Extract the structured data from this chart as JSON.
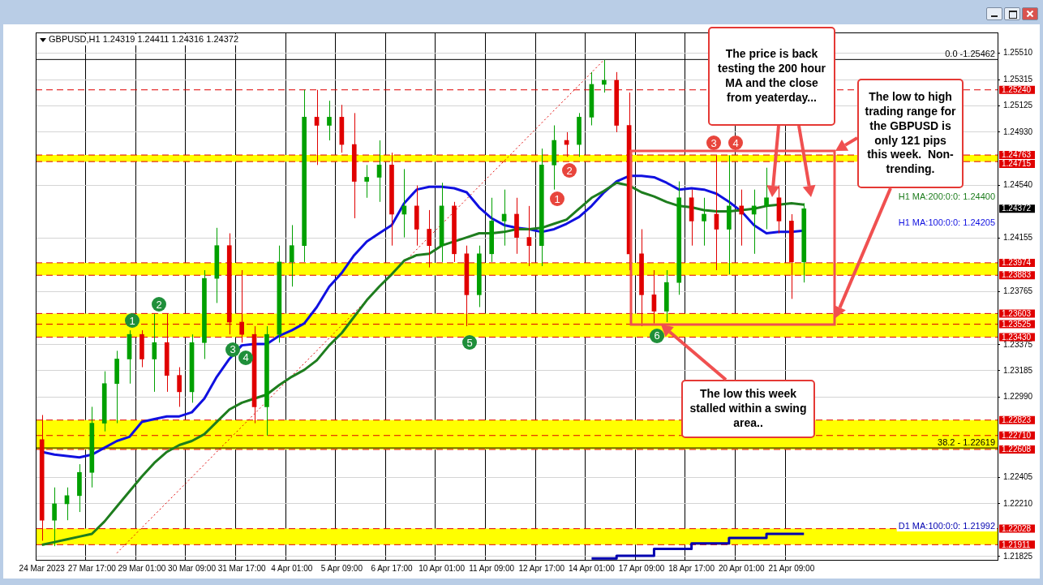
{
  "chart_data": {
    "type": "candlestick",
    "title": "GBPUSD,H1 1.24319 1.24411 1.24316 1.24372",
    "categories": [
      "24 Mar 2023",
      null,
      null,
      null,
      "27 Mar 17:00",
      null,
      null,
      null,
      "29 Mar 01:00",
      null,
      null,
      null,
      "30 Mar 09:00",
      null,
      null,
      null,
      "31 Mar 17:00",
      null,
      null,
      null,
      "4 Apr 01:00",
      null,
      null,
      null,
      "5 Apr 09:00",
      null,
      null,
      null,
      "6 Apr 17:00",
      null,
      null,
      null,
      "10 Apr 01:00",
      null,
      null,
      null,
      "11 Apr 09:00",
      null,
      null,
      null,
      "12 Apr 17:00",
      null,
      null,
      null,
      "14 Apr 01:00",
      null,
      null,
      null,
      "17 Apr 09:00",
      null,
      null,
      null,
      "18 Apr 17:00",
      null,
      null,
      null,
      "20 Apr 01:00",
      null,
      null,
      null,
      "21 Apr 09:00",
      null,
      null,
      null,
      null,
      null,
      null,
      null,
      null,
      null,
      null,
      null,
      null,
      null,
      null,
      null,
      null
    ],
    "ohlc": [
      [
        1.2268,
        1.2286,
        1.2194,
        1.2209
      ],
      [
        1.2209,
        1.2233,
        1.219,
        1.2221
      ],
      [
        1.2221,
        1.2233,
        1.2209,
        1.2227
      ],
      [
        1.2227,
        1.225,
        1.2215,
        1.2244
      ],
      [
        1.2244,
        1.2292,
        1.2233,
        1.228
      ],
      [
        1.228,
        1.2318,
        1.2274,
        1.2309
      ],
      [
        1.2309,
        1.2333,
        1.228,
        1.2327
      ],
      [
        1.2327,
        1.2348,
        1.2309,
        1.2345
      ],
      [
        1.2345,
        1.2348,
        1.2321,
        1.2327
      ],
      [
        1.2327,
        1.236,
        1.2303,
        1.2339
      ],
      [
        1.2339,
        1.236,
        1.2303,
        1.2315
      ],
      [
        1.2315,
        1.2321,
        1.2292,
        1.2303
      ],
      [
        1.2303,
        1.2345,
        1.2295,
        1.2339
      ],
      [
        1.2339,
        1.2392,
        1.2327,
        1.2386
      ],
      [
        1.2386,
        1.2423,
        1.2368,
        1.241
      ],
      [
        1.241,
        1.2419,
        1.2345,
        1.2354
      ],
      [
        1.2354,
        1.2392,
        1.2339,
        1.2345
      ],
      [
        1.2345,
        1.2351,
        1.228,
        1.2292
      ],
      [
        1.2292,
        1.2351,
        1.2271,
        1.2345
      ],
      [
        1.2345,
        1.241,
        1.2339,
        1.2398
      ],
      [
        1.2398,
        1.2425,
        1.238,
        1.241
      ],
      [
        1.241,
        1.2524,
        1.2398,
        1.2504
      ],
      [
        1.2504,
        1.2524,
        1.2469,
        1.2498
      ],
      [
        1.2498,
        1.2516,
        1.2487,
        1.2504
      ],
      [
        1.2504,
        1.2513,
        1.2478,
        1.2484
      ],
      [
        1.2484,
        1.2507,
        1.243,
        1.2457
      ],
      [
        1.2457,
        1.2469,
        1.2445,
        1.246
      ],
      [
        1.246,
        1.2487,
        1.2442,
        1.2469
      ],
      [
        1.2469,
        1.2478,
        1.241,
        1.2433
      ],
      [
        1.2433,
        1.2466,
        1.2416,
        1.2439
      ],
      [
        1.2439,
        1.2454,
        1.241,
        1.2422
      ],
      [
        1.2422,
        1.2436,
        1.2394,
        1.241
      ],
      [
        1.241,
        1.2456,
        1.2398,
        1.2439
      ],
      [
        1.2439,
        1.2442,
        1.2398,
        1.2404
      ],
      [
        1.2404,
        1.241,
        1.2351,
        1.2374
      ],
      [
        1.2374,
        1.241,
        1.2365,
        1.2404
      ],
      [
        1.2404,
        1.2445,
        1.2398,
        1.2428
      ],
      [
        1.2428,
        1.2451,
        1.241,
        1.2433
      ],
      [
        1.2433,
        1.2445,
        1.2404,
        1.2416
      ],
      [
        1.2416,
        1.2439,
        1.2395,
        1.241
      ],
      [
        1.241,
        1.2481,
        1.2395,
        1.2469
      ],
      [
        1.2469,
        1.2498,
        1.2451,
        1.2487
      ],
      [
        1.2487,
        1.2493,
        1.2475,
        1.2484
      ],
      [
        1.2484,
        1.2507,
        1.2475,
        1.2504
      ],
      [
        1.2504,
        1.2537,
        1.2498,
        1.2528
      ],
      [
        1.2528,
        1.2546,
        1.2522,
        1.2531
      ],
      [
        1.2531,
        1.2537,
        1.2493,
        1.2498
      ],
      [
        1.2498,
        1.2522,
        1.2392,
        1.2404
      ],
      [
        1.2404,
        1.2422,
        1.2351,
        1.2374
      ],
      [
        1.2374,
        1.2392,
        1.2353,
        1.2362
      ],
      [
        1.2362,
        1.2392,
        1.2354,
        1.2383
      ],
      [
        1.2383,
        1.2457,
        1.2374,
        1.2445
      ],
      [
        1.2445,
        1.2451,
        1.241,
        1.2428
      ],
      [
        1.2428,
        1.2445,
        1.241,
        1.2433
      ],
      [
        1.2433,
        1.2476,
        1.2392,
        1.2422
      ],
      [
        1.2422,
        1.2476,
        1.2389,
        1.2439
      ],
      [
        1.2439,
        1.2451,
        1.241,
        1.2433
      ],
      [
        1.2433,
        1.2451,
        1.2404,
        1.2439
      ],
      [
        1.2439,
        1.2467,
        1.2422,
        1.2445
      ],
      [
        1.2445,
        1.2454,
        1.2419,
        1.2428
      ],
      [
        1.2428,
        1.2433,
        1.2371,
        1.2398
      ],
      [
        1.2398,
        1.2441,
        1.2383,
        1.2437
      ],
      null,
      null,
      null,
      null,
      null,
      null,
      null,
      null,
      null,
      null,
      null,
      null,
      null,
      null,
      null
    ],
    "colors": [
      "#e00000",
      "#00a000",
      "#00a000",
      "#00a000",
      "#00a000",
      "#00a000",
      "#00a000",
      "#00a000",
      "#e00000",
      "#00a000",
      "#e00000",
      "#e00000",
      "#00a000",
      "#00a000",
      "#00a000",
      "#e00000",
      "#e00000",
      "#e00000",
      "#00a000",
      "#00a000",
      "#00a000",
      "#00a000",
      "#e00000",
      "#00a000",
      "#e00000",
      "#e00000",
      "#00a000",
      "#00a000",
      "#e00000",
      "#00a000",
      "#e00000",
      "#e00000",
      "#00a000",
      "#e00000",
      "#e00000",
      "#00a000",
      "#00a000",
      "#00a000",
      "#e00000",
      "#e00000",
      "#00a000",
      "#00a000",
      "#e00000",
      "#00a000",
      "#00a000",
      "#00a000",
      "#e00000",
      "#e00000",
      "#e00000",
      "#e00000",
      "#00a000",
      "#00a000",
      "#e00000",
      "#00a000",
      "#e00000",
      "#00a000",
      "#e00000",
      "#00a000",
      "#00a000",
      "#e00000",
      "#e00000",
      "#00a000",
      null,
      null,
      null,
      null,
      null,
      null,
      null,
      null,
      null,
      null,
      null,
      null,
      null,
      null,
      null
    ],
    "series": [
      {
        "name": "H1 MA:200:0:0: 1.24400",
        "type": "line",
        "color": "#1e7d1e",
        "values": [
          1.2191,
          1.2193,
          1.2195,
          1.2197,
          1.2199,
          1.2208,
          1.2219,
          1.223,
          1.2241,
          1.2251,
          1.2259,
          1.2264,
          1.2267,
          1.2272,
          1.2281,
          1.229,
          1.2295,
          1.2298,
          1.2301,
          1.2308,
          1.2314,
          1.2319,
          1.2326,
          1.2337,
          1.2346,
          1.2358,
          1.237,
          1.238,
          1.2389,
          1.2399,
          1.2403,
          1.2404,
          1.241,
          1.2413,
          1.2416,
          1.2419,
          1.2419,
          1.242,
          1.2422,
          1.2422,
          1.2423,
          1.2426,
          1.2429,
          1.2437,
          1.2445,
          1.245,
          1.2456,
          1.2454,
          1.2449,
          1.2446,
          1.2442,
          1.2439,
          1.2438,
          1.2436,
          1.2435,
          1.2435,
          1.2436,
          1.2437,
          1.2439,
          1.244,
          1.2441,
          1.244,
          null,
          null,
          null,
          null,
          null,
          null,
          null,
          null,
          null,
          null,
          null,
          null,
          null,
          null,
          null
        ]
      },
      {
        "name": "H1 MA:100:0:0: 1.24205",
        "type": "line",
        "color": "#1010e0",
        "values": [
          1.2259,
          1.2257,
          1.2256,
          1.2255,
          1.2257,
          1.2262,
          1.2267,
          1.227,
          1.2281,
          1.2283,
          1.2285,
          1.2285,
          1.2288,
          1.2298,
          1.2314,
          1.2327,
          1.2337,
          1.2338,
          1.2338,
          1.2344,
          1.2348,
          1.2353,
          1.2365,
          1.238,
          1.239,
          1.2403,
          1.2413,
          1.2419,
          1.2425,
          1.2441,
          1.2451,
          1.2453,
          1.2453,
          1.2452,
          1.2449,
          1.2438,
          1.243,
          1.2425,
          1.2423,
          1.2422,
          1.242,
          1.2422,
          1.2426,
          1.2431,
          1.2439,
          1.2449,
          1.2457,
          1.2461,
          1.2461,
          1.246,
          1.2456,
          1.2451,
          1.2452,
          1.2451,
          1.2448,
          1.2442,
          1.2435,
          1.2425,
          1.2419,
          1.242,
          1.242,
          1.2421,
          null,
          null,
          null,
          null,
          null,
          null,
          null,
          null,
          null,
          null,
          null,
          null,
          null,
          null,
          null
        ]
      },
      {
        "name": "D1 MA:100:0:0: 1.21992",
        "type": "step",
        "color": "#0000b0",
        "values": [
          null,
          null,
          null,
          null,
          null,
          null,
          null,
          null,
          null,
          null,
          null,
          null,
          null,
          null,
          null,
          null,
          null,
          null,
          null,
          null,
          null,
          null,
          null,
          null,
          null,
          null,
          null,
          null,
          null,
          null,
          null,
          null,
          null,
          null,
          null,
          null,
          null,
          null,
          null,
          null,
          null,
          null,
          null,
          null,
          1.2181,
          1.2181,
          1.2181,
          1.2183,
          1.2183,
          1.2183,
          1.2188,
          1.2188,
          1.2188,
          1.2192,
          1.2192,
          1.2192,
          1.2196,
          1.2196,
          1.2196,
          1.2199,
          1.2199,
          1.2199,
          null,
          null,
          null,
          null,
          null,
          null,
          null,
          null,
          null,
          null,
          null,
          null,
          null,
          null,
          null
        ]
      },
      {
        "type": "line",
        "color": "#e00000",
        "line_style": "dotted",
        "values": [
          null,
          null,
          null,
          null,
          null,
          null,
          1.2185,
          null,
          null,
          null,
          null,
          null,
          null,
          null,
          null,
          null,
          null,
          null,
          null,
          null,
          null,
          null,
          null,
          null,
          null,
          null,
          null,
          null,
          null,
          null,
          null,
          null,
          null,
          null,
          null,
          null,
          null,
          null,
          null,
          null,
          null,
          null,
          null,
          null,
          null,
          1.2546,
          null,
          null,
          null,
          null,
          null,
          null,
          null,
          null,
          null,
          null,
          null,
          null,
          null,
          null,
          null,
          null,
          null,
          null,
          null,
          null,
          null,
          null,
          null,
          null,
          null,
          null,
          null,
          null,
          null,
          null,
          null
        ]
      }
    ],
    "ylim": [
      1.218,
      1.2566
    ],
    "yticks": [
      {
        "value": 1.2551,
        "label": "1.25510"
      },
      {
        "value": 1.25315,
        "label": "1.25315"
      },
      {
        "value": 1.25125,
        "label": "1.25125"
      },
      {
        "value": 1.2493,
        "label": "1.24930"
      },
      {
        "value": 1.2454,
        "label": "1.24540"
      },
      {
        "value": 1.24155,
        "label": "1.24155"
      },
      {
        "value": 1.23765,
        "label": "1.23765"
      },
      {
        "value": 1.23375,
        "label": "1.23375"
      },
      {
        "value": 1.23185,
        "label": "1.23185"
      },
      {
        "value": 1.2299,
        "label": "1.22990"
      },
      {
        "value": 1.22405,
        "label": "1.22405"
      },
      {
        "value": 1.2221,
        "label": "1.22210"
      },
      {
        "value": 1.21825,
        "label": "1.21825"
      }
    ],
    "grid": true,
    "bands": [
      {
        "axis": "y",
        "from": 1.24715,
        "to": 1.24763,
        "color": "#ffff00"
      },
      {
        "axis": "y",
        "from": 1.23883,
        "to": 1.23974,
        "color": "#ffff00"
      },
      {
        "axis": "y",
        "from": 1.2343,
        "to": 1.23603,
        "color": "#ffff00"
      },
      {
        "axis": "y",
        "from": 1.22608,
        "to": 1.22823,
        "color": "#ffff00"
      },
      {
        "axis": "y",
        "from": 1.21911,
        "to": 1.22028,
        "color": "#ffff00"
      }
    ],
    "ref_lines": [
      {
        "axis": "y",
        "value": 1.2524,
        "label": "1.25240",
        "color": "#e00000",
        "line_style": "dashed"
      },
      {
        "axis": "y",
        "value": 1.24763,
        "label": "1.24763",
        "color": "#e00000",
        "line_style": "dashed"
      },
      {
        "axis": "y",
        "value": 1.24715,
        "label": "1.24715",
        "color": "#e00000",
        "line_style": "dashed"
      },
      {
        "axis": "y",
        "value": 1.23974,
        "label": "1.23974",
        "color": "#e00000",
        "line_style": "dashed"
      },
      {
        "axis": "y",
        "value": 1.23883,
        "label": "1.23883",
        "color": "#e00000",
        "line_style": "dashed"
      },
      {
        "axis": "y",
        "value": 1.23603,
        "label": "1.23603",
        "color": "#e00000",
        "line_style": "dashed"
      },
      {
        "axis": "y",
        "value": 1.23525,
        "label": "1.23525",
        "color": "#e00000",
        "line_style": "dashed"
      },
      {
        "axis": "y",
        "value": 1.2343,
        "label": "1.23430",
        "color": "#e00000",
        "line_style": "dashed"
      },
      {
        "axis": "y",
        "value": 1.22823,
        "label": "1.22823",
        "color": "#e00000",
        "line_style": "dashed"
      },
      {
        "axis": "y",
        "value": 1.2271,
        "label": "1.22710",
        "color": "#e00000",
        "line_style": "dashed"
      },
      {
        "axis": "y",
        "value": 1.22608,
        "label": "1.22608",
        "color": "#e00000",
        "line_style": "dashed"
      },
      {
        "axis": "y",
        "value": 1.22028,
        "label": "1.22028",
        "color": "#e00000",
        "line_style": "dashed"
      },
      {
        "axis": "y",
        "value": 1.21911,
        "label": "1.21911",
        "color": "#e00000",
        "line_style": "dashed"
      },
      {
        "axis": "y",
        "value": 1.25462,
        "color": "#000000",
        "line_style": "solid"
      },
      {
        "axis": "y",
        "value": 1.22619,
        "color": "#000000",
        "line_style": "solid"
      }
    ],
    "annotations": [
      "The price is back testing the 200 hour MA and the close from yeaterday...",
      "The low to high trading range for the GBPUSD is only 121 pips this week.  Non-trending.",
      "The low this week stalled within a swing area..",
      "1.24372",
      {
        "text": "1",
        "y": 1.2355
      },
      {
        "text": "2",
        "y": 1.2367
      },
      {
        "text": "3",
        "y": 1.2334
      },
      {
        "text": "4",
        "y": 1.2328
      },
      {
        "text": "5",
        "y": 1.2339
      },
      {
        "text": "6",
        "y": 1.2344
      },
      {
        "text": "1",
        "y": 1.2444
      },
      {
        "text": "2",
        "y": 1.2465
      },
      {
        "text": "3",
        "y": 1.2485
      },
      {
        "text": "4",
        "y": 1.2485
      },
      {
        "text": "0.0 -1.25462",
        "y": 1.25462
      },
      {
        "text": "38.2 - 1.22619",
        "y": 1.22619
      }
    ]
  }
}
